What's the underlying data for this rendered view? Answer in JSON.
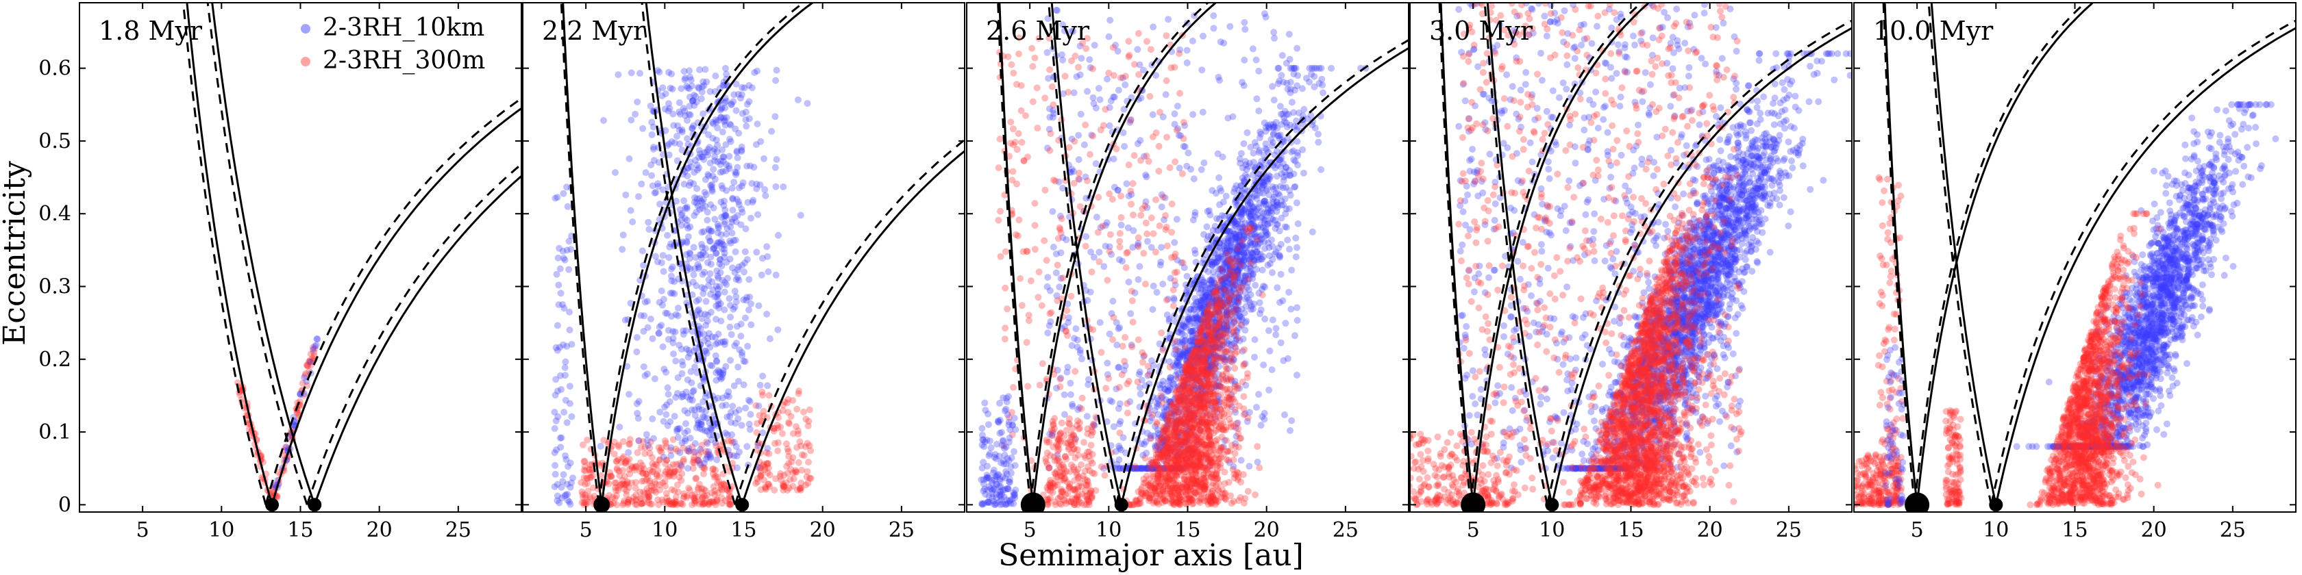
{
  "chart_data": {
    "type": "scatter",
    "xlabel": "Semimajor axis [au]",
    "ylabel": "Eccentricity",
    "xlim": [
      1,
      29
    ],
    "ylim": [
      -0.01,
      0.69
    ],
    "x_ticks": [
      5,
      10,
      15,
      20,
      25
    ],
    "y_ticks": [
      0,
      0.1,
      0.2,
      0.3,
      0.4,
      0.5,
      0.6
    ],
    "y_tick_labels": [
      "0",
      "0.1",
      "0.2",
      "0.3",
      "0.4",
      "0.5",
      "0.6"
    ],
    "legend": [
      {
        "name": "2-3RH_10km",
        "color": "#3333ff"
      },
      {
        "name": "2-3RH_300m",
        "color": "#ff3333"
      }
    ],
    "legend_location": "top-right of first panel",
    "series_colors": {
      "10km": "#3a3aff",
      "300m": "#ff2a2a"
    },
    "panels": [
      {
        "label": "1.8 Myr",
        "planets": [
          {
            "a": 13.2,
            "size": "small",
            "crossing_solid": true
          },
          {
            "a": 15.9,
            "size": "small",
            "crossing_solid": true
          }
        ],
        "clouds": [
          {
            "series": "300m",
            "n": 60,
            "a_center": 12.6,
            "a_spread": 0.35,
            "e_min": 0.0,
            "e_max": 0.17,
            "mode": "line-left",
            "ref": 13.2
          },
          {
            "series": "300m",
            "n": 70,
            "a_center": 14.3,
            "a_spread": 0.4,
            "e_min": 0.0,
            "e_max": 0.23,
            "mode": "line-right",
            "ref": 13.2
          },
          {
            "series": "10km",
            "n": 35,
            "a_center": 14.6,
            "a_spread": 0.4,
            "e_min": 0.02,
            "e_max": 0.23,
            "mode": "line-right",
            "ref": 13.2
          }
        ]
      },
      {
        "label": "2.2 Myr",
        "planets": [
          {
            "a": 6.0,
            "size": "medium",
            "crossing_solid": true
          },
          {
            "a": 14.9,
            "size": "small",
            "crossing_solid": true
          }
        ],
        "clouds": [
          {
            "series": "300m",
            "n": 420,
            "a_center": 9.5,
            "a_spread": 4.8,
            "e_min": 0.0,
            "e_max": 0.09,
            "mode": "band"
          },
          {
            "series": "300m",
            "n": 140,
            "a_center": 17.5,
            "a_spread": 1.8,
            "e_min": 0.02,
            "e_max": 0.16,
            "mode": "band"
          },
          {
            "series": "10km",
            "n": 900,
            "a_center": 12.5,
            "a_spread": 3.4,
            "e_min": 0.05,
            "e_max": 0.6,
            "mode": "fan"
          },
          {
            "series": "10km",
            "n": 80,
            "a_center": 3.6,
            "a_spread": 0.6,
            "e_min": 0.0,
            "e_max": 0.45,
            "mode": "band"
          }
        ]
      },
      {
        "label": "2.6 Myr",
        "planets": [
          {
            "a": 5.2,
            "size": "large",
            "crossing_solid": true
          },
          {
            "a": 10.8,
            "size": "small",
            "crossing_solid": true
          }
        ],
        "clouds": [
          {
            "series": "10km",
            "n": 1700,
            "a_center": 17.0,
            "a_spread": 4.5,
            "e_min": 0.05,
            "e_max": 0.6,
            "mode": "arc"
          },
          {
            "series": "10km",
            "n": 500,
            "a_center": 14.0,
            "a_spread": 8.0,
            "e_min": 0.05,
            "e_max": 0.68,
            "mode": "scatter"
          },
          {
            "series": "300m",
            "n": 1500,
            "a_center": 15.5,
            "a_spread": 2.6,
            "e_min": 0.0,
            "e_max": 0.38,
            "mode": "arc-low"
          },
          {
            "series": "300m",
            "n": 350,
            "a_center": 9.0,
            "a_spread": 6.0,
            "e_min": 0.0,
            "e_max": 0.65,
            "mode": "scatter"
          },
          {
            "series": "300m",
            "n": 200,
            "a_center": 7.5,
            "a_spread": 1.5,
            "e_min": 0.0,
            "e_max": 0.12,
            "mode": "band"
          },
          {
            "series": "10km",
            "n": 150,
            "a_center": 3.0,
            "a_spread": 1.1,
            "e_min": 0.0,
            "e_max": 0.15,
            "mode": "band"
          }
        ]
      },
      {
        "label": "3.0 Myr",
        "planets": [
          {
            "a": 5.0,
            "size": "large",
            "crossing_solid": true
          },
          {
            "a": 10.0,
            "size": "small",
            "crossing_solid": true
          }
        ],
        "clouds": [
          {
            "series": "10km",
            "n": 2200,
            "a_center": 19.0,
            "a_spread": 5.5,
            "e_min": 0.05,
            "e_max": 0.62,
            "mode": "arc"
          },
          {
            "series": "10km",
            "n": 700,
            "a_center": 13.0,
            "a_spread": 9.0,
            "e_min": 0.05,
            "e_max": 0.69,
            "mode": "scatter"
          },
          {
            "series": "300m",
            "n": 1900,
            "a_center": 16.0,
            "a_spread": 3.0,
            "e_min": 0.0,
            "e_max": 0.45,
            "mode": "arc-low"
          },
          {
            "series": "300m",
            "n": 700,
            "a_center": 13.0,
            "a_spread": 9.0,
            "e_min": 0.0,
            "e_max": 0.69,
            "mode": "scatter"
          },
          {
            "series": "300m",
            "n": 260,
            "a_center": 4.0,
            "a_spread": 3.8,
            "e_min": 0.0,
            "e_max": 0.1,
            "mode": "band"
          }
        ]
      },
      {
        "label": "10.0 Myr",
        "planets": [
          {
            "a": 5.0,
            "size": "large",
            "crossing_solid": true
          },
          {
            "a": 10.0,
            "size": "small",
            "crossing_solid": true
          }
        ],
        "clouds": [
          {
            "series": "10km",
            "n": 1900,
            "a_center": 20.0,
            "a_spread": 4.5,
            "e_min": 0.08,
            "e_max": 0.55,
            "mode": "arc"
          },
          {
            "series": "300m",
            "n": 1500,
            "a_center": 16.0,
            "a_spread": 2.3,
            "e_min": 0.0,
            "e_max": 0.4,
            "mode": "arc-low"
          },
          {
            "series": "300m",
            "n": 200,
            "a_center": 2.5,
            "a_spread": 1.5,
            "e_min": 0.0,
            "e_max": 0.07,
            "mode": "band"
          },
          {
            "series": "300m",
            "n": 120,
            "a_center": 3.3,
            "a_spread": 0.8,
            "e_min": 0.0,
            "e_max": 0.45,
            "mode": "band"
          },
          {
            "series": "300m",
            "n": 120,
            "a_center": 7.3,
            "a_spread": 0.5,
            "e_min": 0.0,
            "e_max": 0.13,
            "mode": "band"
          },
          {
            "series": "10km",
            "n": 60,
            "a_center": 3.6,
            "a_spread": 0.6,
            "e_min": 0.0,
            "e_max": 0.22,
            "mode": "band"
          }
        ]
      }
    ]
  }
}
